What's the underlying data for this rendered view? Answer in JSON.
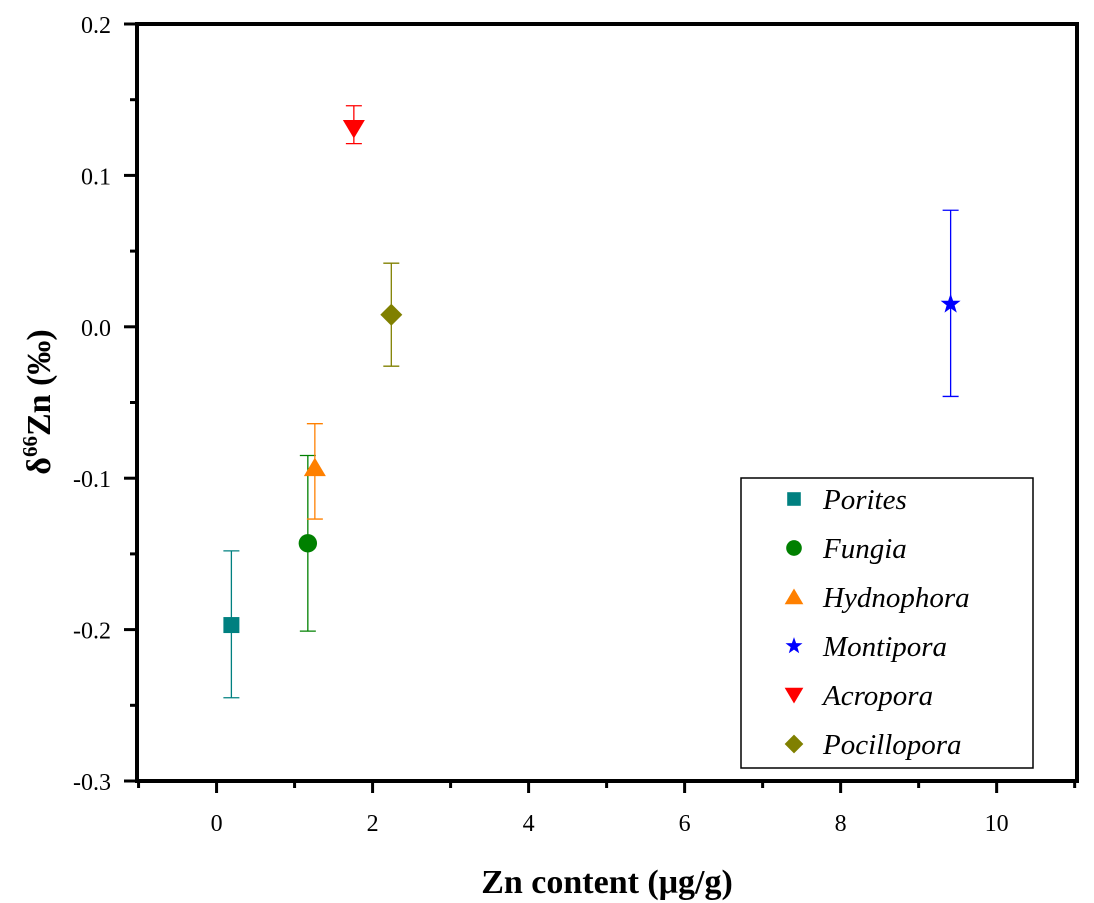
{
  "chart_data": {
    "type": "scatter",
    "title": "",
    "xlabel": "Zn content (μg/g)",
    "ylabel_parts": {
      "delta": "δ",
      "superscript": "66",
      "rest": "Zn (‰)"
    },
    "ylabel": "δ66Zn (‰)",
    "xlim": [
      -1.02,
      11.03
    ],
    "ylim": [
      -0.3,
      0.2
    ],
    "x_ticks": [
      0,
      2,
      4,
      6,
      8,
      10
    ],
    "x_tick_labels": [
      "0",
      "2",
      "4",
      "6",
      "8",
      "10"
    ],
    "x_minor_ticks": [
      -1,
      1,
      3,
      5,
      7,
      9,
      11
    ],
    "y_ticks": [
      -0.3,
      -0.2,
      -0.1,
      0.0,
      0.1,
      0.2
    ],
    "y_tick_labels": [
      "-0.3",
      "-0.2",
      "-0.1",
      "0.0",
      "0.1",
      "0.2"
    ],
    "y_minor_ticks": [
      -0.25,
      -0.15,
      -0.05,
      0.05,
      0.15
    ],
    "grid": false,
    "legend_position": "bottom-right",
    "series": [
      {
        "name": "Porites",
        "marker": "square",
        "color": "#008080",
        "x": 0.19,
        "y": -0.197,
        "err_low": -0.245,
        "err_high": -0.148
      },
      {
        "name": "Fungia",
        "marker": "circle",
        "color": "#008000",
        "x": 1.17,
        "y": -0.143,
        "err_low": -0.201,
        "err_high": -0.085
      },
      {
        "name": "Hydnophora",
        "marker": "triangle-up",
        "color": "#FF8000",
        "x": 1.26,
        "y": -0.093,
        "err_low": -0.127,
        "err_high": -0.064
      },
      {
        "name": "Montipora",
        "marker": "star",
        "color": "#0000FF",
        "x": 9.41,
        "y": 0.015,
        "err_low": -0.046,
        "err_high": 0.077
      },
      {
        "name": "Acropora",
        "marker": "triangle-down",
        "color": "#FF0000",
        "x": 1.76,
        "y": 0.131,
        "err_low": 0.121,
        "err_high": 0.146
      },
      {
        "name": "Pocillopora",
        "marker": "diamond",
        "color": "#808000",
        "x": 2.24,
        "y": 0.008,
        "err_low": -0.026,
        "err_high": 0.042
      }
    ]
  }
}
